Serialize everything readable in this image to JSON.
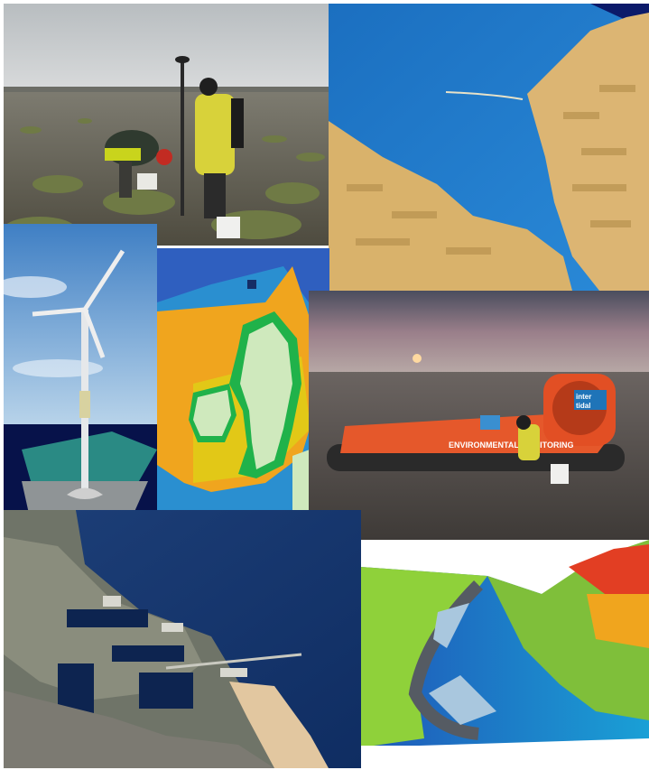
{
  "collage": {
    "hovercraft": {
      "side_text": "ENVIRONMENTAL MONITORING",
      "logo_line1": "inter",
      "logo_line2": "tidal"
    }
  }
}
